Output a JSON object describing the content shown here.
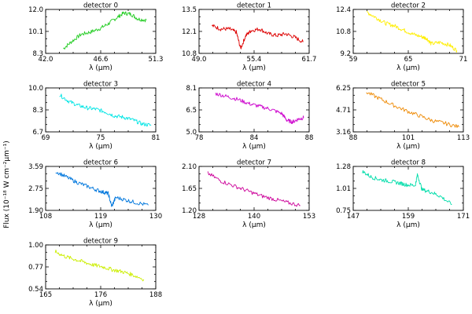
{
  "figure": {
    "ylabel": "Flux (10⁻¹⁸ W cm⁻²μm⁻¹)"
  },
  "chart_data": [
    {
      "type": "line",
      "title": "detector 0",
      "xlabel": "λ (μm)",
      "color": "#22cc22",
      "xlim": [
        42.0,
        51.3
      ],
      "ylim": [
        8.3,
        12.0
      ],
      "xticks": [
        "42.0",
        "46.6",
        "51.3"
      ],
      "yticks": [
        "8.3",
        "10.1",
        "12.0"
      ],
      "x": [
        43.5,
        44.2,
        45.0,
        45.8,
        46.6,
        47.3,
        48.0,
        48.6,
        49.2,
        49.8,
        50.5
      ],
      "y": [
        8.7,
        9.3,
        9.9,
        10.1,
        10.4,
        10.8,
        11.3,
        11.7,
        11.6,
        11.2,
        11.1
      ]
    },
    {
      "type": "line",
      "title": "detector 1",
      "xlabel": "λ (μm)",
      "color": "#dd0000",
      "xlim": [
        49.0,
        61.7
      ],
      "ylim": [
        10.8,
        13.5
      ],
      "xticks": [
        "49.0",
        "55.4",
        "61.7"
      ],
      "yticks": [
        "10.8",
        "12.1",
        "13.5"
      ],
      "x": [
        50.5,
        51.5,
        52.5,
        53.3,
        53.8,
        54.4,
        55.0,
        56.0,
        57.0,
        58.0,
        59.0,
        60.0,
        61.0
      ],
      "y": [
        12.5,
        12.3,
        12.3,
        12.1,
        11.1,
        11.9,
        12.2,
        12.3,
        12.0,
        11.9,
        12.0,
        11.8,
        11.5
      ]
    },
    {
      "type": "line",
      "title": "detector 2",
      "xlabel": "λ (μm)",
      "color": "#ffee00",
      "xlim": [
        59,
        71
      ],
      "ylim": [
        9.2,
        12.4
      ],
      "xticks": [
        "59",
        "65",
        "71"
      ],
      "yticks": [
        "9.2",
        "10.8",
        "12.4"
      ],
      "x": [
        60.5,
        61.5,
        62.5,
        63.5,
        64.5,
        65.5,
        66.5,
        67.0,
        67.5,
        68.5,
        69.5,
        70.3
      ],
      "y": [
        12.2,
        11.8,
        11.4,
        11.2,
        10.9,
        10.6,
        10.4,
        10.3,
        9.9,
        10.0,
        9.8,
        9.4
      ]
    },
    {
      "type": "line",
      "title": "detector 3",
      "xlabel": "λ (μm)",
      "color": "#00e5e5",
      "xlim": [
        69,
        81
      ],
      "ylim": [
        6.7,
        10.0
      ],
      "xticks": [
        "69",
        "75",
        "81"
      ],
      "yticks": [
        "6.7",
        "8.3",
        "10.0"
      ],
      "x": [
        70.5,
        71.5,
        72.5,
        73.5,
        74.5,
        75.5,
        76.5,
        77.5,
        78.5,
        79.5,
        80.5
      ],
      "y": [
        9.5,
        9.0,
        8.7,
        8.5,
        8.4,
        8.2,
        7.9,
        7.8,
        7.6,
        7.3,
        7.2
      ]
    },
    {
      "type": "line",
      "title": "detector 4",
      "xlabel": "λ (μm)",
      "color": "#cc00cc",
      "xlim": [
        78,
        88
      ],
      "ylim": [
        5.0,
        8.1
      ],
      "xticks": [
        "78",
        "84",
        "88"
      ],
      "yticks": [
        "5.0",
        "6.5",
        "8.1"
      ],
      "x": [
        79.5,
        80.5,
        81.5,
        82.5,
        83.5,
        84.5,
        85.5,
        86.0,
        86.5,
        87.0,
        87.5
      ],
      "y": [
        7.7,
        7.5,
        7.3,
        7.0,
        6.8,
        6.6,
        6.3,
        5.8,
        5.7,
        5.9,
        6.0
      ]
    },
    {
      "type": "line",
      "title": "detector 5",
      "xlabel": "λ (μm)",
      "color": "#ee8800",
      "xlim": [
        88,
        113
      ],
      "ylim": [
        3.16,
        6.25
      ],
      "xticks": [
        "88",
        "101",
        "113"
      ],
      "yticks": [
        "3.16",
        "4.71",
        "6.25"
      ],
      "x": [
        91,
        94,
        97,
        100,
        103,
        106,
        109,
        112
      ],
      "y": [
        5.95,
        5.5,
        5.05,
        4.65,
        4.3,
        3.95,
        3.75,
        3.5
      ]
    },
    {
      "type": "line",
      "title": "detector 6",
      "xlabel": "λ (μm)",
      "color": "#0077dd",
      "xlim": [
        108,
        130
      ],
      "ylim": [
        1.9,
        3.59
      ],
      "xticks": [
        "108",
        "119",
        "130"
      ],
      "yticks": [
        "1.90",
        "2.75",
        "3.59"
      ],
      "x": [
        110,
        112,
        114,
        116,
        118,
        119.5,
        120.5,
        121.2,
        122,
        124,
        126,
        128.5
      ],
      "y": [
        3.4,
        3.2,
        3.0,
        2.85,
        2.7,
        2.6,
        2.55,
        2.05,
        2.4,
        2.3,
        2.2,
        2.1
      ]
    },
    {
      "type": "line",
      "title": "detector 7",
      "xlabel": "λ (μm)",
      "color": "#cc0099",
      "xlim": [
        128,
        153
      ],
      "ylim": [
        1.2,
        2.1
      ],
      "xticks": [
        "128",
        "140",
        "153"
      ],
      "yticks": [
        "1.20",
        "1.65",
        "2.10"
      ],
      "x": [
        130,
        133,
        136,
        139,
        142,
        145,
        148,
        151
      ],
      "y": [
        1.96,
        1.8,
        1.7,
        1.6,
        1.5,
        1.43,
        1.36,
        1.3
      ]
    },
    {
      "type": "line",
      "title": "detector 8",
      "xlabel": "λ (μm)",
      "color": "#00ddaa",
      "xlim": [
        147,
        171
      ],
      "ylim": [
        0.75,
        1.28
      ],
      "xticks": [
        "147",
        "159",
        "171"
      ],
      "yticks": [
        "0.75",
        "1.01",
        "1.28"
      ],
      "x": [
        149,
        151,
        153,
        155,
        157,
        158.5,
        160.5,
        161,
        162,
        164,
        166,
        168.5
      ],
      "y": [
        1.22,
        1.15,
        1.12,
        1.1,
        1.08,
        1.06,
        1.05,
        1.18,
        1.0,
        0.97,
        0.92,
        0.82
      ]
    },
    {
      "type": "line",
      "title": "detector 9",
      "xlabel": "λ (μm)",
      "color": "#ccee00",
      "xlim": [
        165,
        188
      ],
      "ylim": [
        0.54,
        1.0
      ],
      "xticks": [
        "165",
        "176",
        "188"
      ],
      "yticks": [
        "0.54",
        "0.77",
        "1.00"
      ],
      "x": [
        167,
        169,
        171,
        173,
        175,
        177,
        179,
        181,
        183,
        185.5
      ],
      "y": [
        0.93,
        0.88,
        0.85,
        0.82,
        0.79,
        0.77,
        0.74,
        0.72,
        0.69,
        0.64
      ]
    }
  ]
}
